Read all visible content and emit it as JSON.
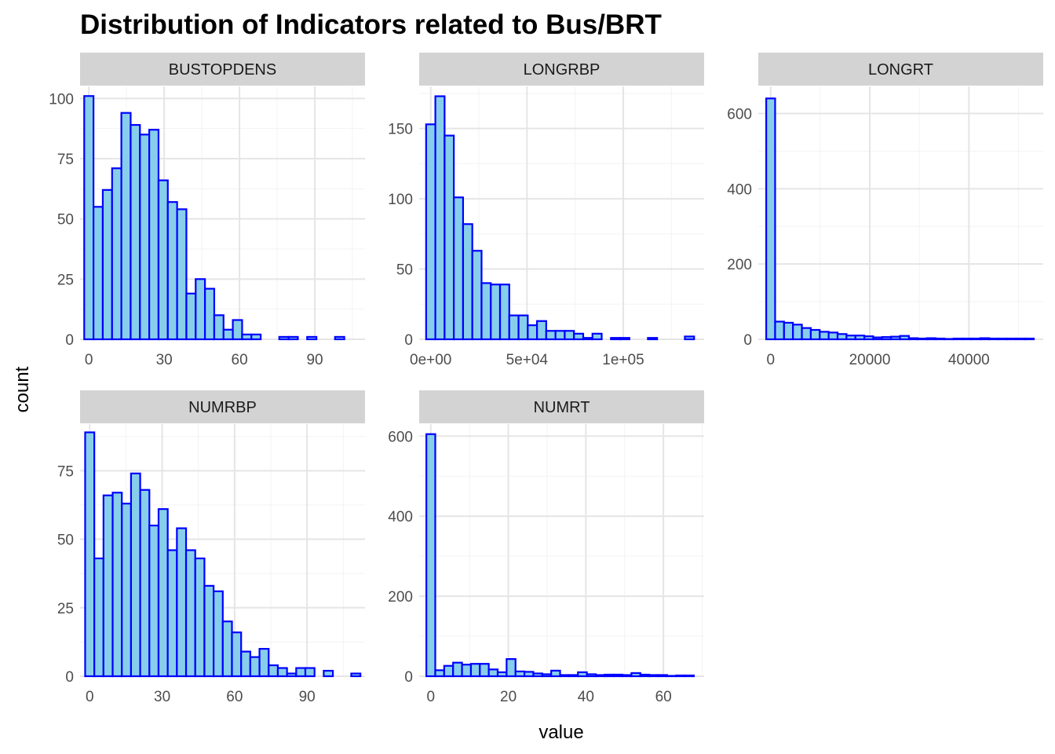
{
  "colors": {
    "fill": "#87CEEB",
    "stroke": "#0000FF",
    "strip": "#D3D3D3"
  },
  "chart_data": {
    "type": "bar",
    "title": "Distribution of Indicators related to Bus/BRT",
    "xlabel": "value",
    "ylabel": "count",
    "grid": true,
    "facets": [
      {
        "name": "BUSTOPDENS",
        "xlim": [
          -3.5,
          110
        ],
        "ylim": [
          0,
          105
        ],
        "xticks": [
          0,
          30,
          60,
          90
        ],
        "xtick_labels": [
          "0",
          "30",
          "60",
          "90"
        ],
        "yticks": [
          0,
          25,
          50,
          75,
          100
        ],
        "ytick_labels": [
          "0",
          "25",
          "50",
          "75",
          "100"
        ],
        "bin_start": -1.85,
        "bin_width": 3.7,
        "counts": [
          101,
          55,
          62,
          71,
          94,
          89,
          85,
          87,
          66,
          57,
          54,
          19,
          25,
          21,
          10,
          4,
          8,
          2,
          2,
          0,
          0,
          1,
          1,
          0,
          1,
          0,
          0,
          1
        ]
      },
      {
        "name": "LONGRBP",
        "xlim": [
          -6000,
          142000
        ],
        "ylim": [
          0,
          180
        ],
        "xticks": [
          0,
          50000,
          100000
        ],
        "xtick_labels": [
          "0e+00",
          "5e+04",
          "1e+05"
        ],
        "yticks": [
          0,
          50,
          100,
          150
        ],
        "ytick_labels": [
          "0",
          "50",
          "100",
          "150"
        ],
        "bin_start": -2400,
        "bin_width": 4800,
        "counts": [
          153,
          173,
          145,
          101,
          82,
          63,
          40,
          39,
          39,
          17,
          17,
          10,
          13,
          6,
          6,
          6,
          4,
          1,
          4,
          0,
          1,
          1,
          0,
          0,
          1,
          0,
          0,
          0,
          2
        ]
      },
      {
        "name": "LONGRT",
        "xlim": [
          -2500,
          55000
        ],
        "ylim": [
          0,
          672
        ],
        "xticks": [
          0,
          20000,
          40000
        ],
        "xtick_labels": [
          "0",
          "20000",
          "40000"
        ],
        "yticks": [
          0,
          200,
          400,
          600
        ],
        "ytick_labels": [
          "0",
          "200",
          "400",
          "600"
        ],
        "bin_start": -900,
        "bin_width": 1800,
        "counts": [
          640,
          47,
          44,
          39,
          30,
          25,
          20,
          18,
          14,
          10,
          10,
          8,
          5,
          6,
          7,
          9,
          3,
          2,
          3,
          2,
          1,
          2,
          2,
          2,
          3,
          2,
          2,
          2,
          2,
          2
        ]
      },
      {
        "name": "NUMRBP",
        "xlim": [
          -4,
          114
        ],
        "ylim": [
          0,
          92
        ],
        "xticks": [
          0,
          30,
          60,
          90
        ],
        "xtick_labels": [
          "0",
          "30",
          "60",
          "90"
        ],
        "yticks": [
          0,
          25,
          50,
          75
        ],
        "ytick_labels": [
          "0",
          "25",
          "50",
          "75"
        ],
        "bin_start": -1.9,
        "bin_width": 3.8,
        "counts": [
          89,
          43,
          66,
          67,
          63,
          74,
          68,
          55,
          61,
          46,
          54,
          46,
          43,
          33,
          31,
          20,
          16,
          9,
          7,
          10,
          4,
          3,
          1,
          3,
          3,
          0,
          2,
          0,
          0,
          1
        ]
      },
      {
        "name": "NUMRT",
        "xlim": [
          -3,
          70.5
        ],
        "ylim": [
          0,
          630
        ],
        "xticks": [
          0,
          20,
          40,
          60
        ],
        "xtick_labels": [
          "0",
          "20",
          "40",
          "60"
        ],
        "yticks": [
          0,
          200,
          400,
          600
        ],
        "ytick_labels": [
          "0",
          "200",
          "400",
          "600"
        ],
        "bin_start": -1.15,
        "bin_width": 2.3,
        "counts": [
          605,
          15,
          26,
          34,
          29,
          31,
          31,
          17,
          10,
          43,
          12,
          11,
          7,
          5,
          14,
          3,
          3,
          10,
          5,
          3,
          4,
          4,
          3,
          8,
          4,
          3,
          3,
          1,
          2,
          2
        ]
      }
    ]
  }
}
